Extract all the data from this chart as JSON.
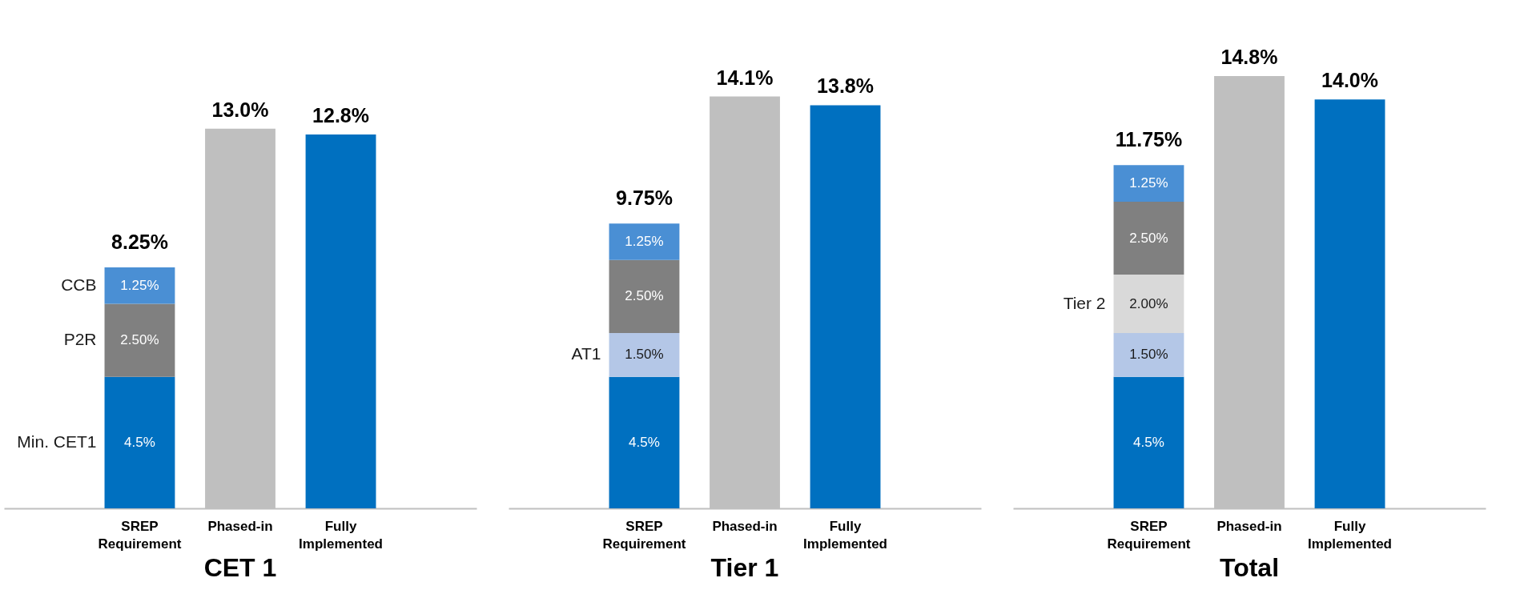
{
  "chart_data": [
    {
      "type": "bar",
      "title": "CET 1",
      "categories": [
        "SREP Requirement",
        "Phased-in",
        "Fully Implemented"
      ],
      "stacked": true,
      "tick_labels": "x",
      "totals": [
        "8.25%",
        null,
        null
      ],
      "series": [
        {
          "name": "Min. CET1",
          "color": "#0070c0",
          "values": [
            4.5,
            null,
            null
          ],
          "value_labels": [
            "4.5%",
            null,
            null
          ]
        },
        {
          "name": "P2R",
          "color": "#808080",
          "values": [
            2.5,
            null,
            null
          ],
          "value_labels": [
            "2.50%",
            null,
            null
          ]
        },
        {
          "name": "CCB",
          "color": "#4a8fd4",
          "values": [
            1.25,
            null,
            null
          ],
          "value_labels": [
            "1.25%",
            null,
            null
          ]
        },
        {
          "color": "#bfbfbf",
          "values": [
            null,
            13.0,
            null
          ],
          "value_labels": [
            null,
            "13.0%",
            null
          ]
        },
        {
          "color": "#0070c0",
          "values": [
            null,
            null,
            12.8
          ],
          "value_labels": [
            null,
            null,
            "12.8%"
          ]
        }
      ]
    },
    {
      "type": "bar",
      "title": "Tier 1",
      "categories": [
        "SREP Requirement",
        "Phased-in",
        "Fully Implemented"
      ],
      "stacked": true,
      "tick_labels": "x",
      "totals": [
        "9.75%",
        null,
        null
      ],
      "series": [
        {
          "color": "#0070c0",
          "values": [
            4.5,
            null,
            null
          ],
          "value_labels": [
            "4.5%",
            null,
            null
          ]
        },
        {
          "name": "AT1",
          "color": "#b4c7e7",
          "values": [
            1.5,
            null,
            null
          ],
          "value_labels": [
            "1.50%",
            null,
            null
          ]
        },
        {
          "color": "#808080",
          "values": [
            2.5,
            null,
            null
          ],
          "value_labels": [
            "2.50%",
            null,
            null
          ]
        },
        {
          "color": "#4a8fd4",
          "values": [
            1.25,
            null,
            null
          ],
          "value_labels": [
            "1.25%",
            null,
            null
          ]
        },
        {
          "color": "#bfbfbf",
          "values": [
            null,
            14.1,
            null
          ],
          "value_labels": [
            null,
            "14.1%",
            null
          ]
        },
        {
          "color": "#0070c0",
          "values": [
            null,
            null,
            13.8
          ],
          "value_labels": [
            null,
            null,
            "13.8%"
          ]
        }
      ]
    },
    {
      "type": "bar",
      "title": "Total",
      "categories": [
        "SREP Requirement",
        "Phased-in",
        "Fully Implemented"
      ],
      "stacked": true,
      "tick_labels": "x",
      "totals": [
        "11.75%",
        null,
        null
      ],
      "series": [
        {
          "color": "#0070c0",
          "values": [
            4.5,
            null,
            null
          ],
          "value_labels": [
            "4.5%",
            null,
            null
          ]
        },
        {
          "color": "#b4c7e7",
          "values": [
            1.5,
            null,
            null
          ],
          "value_labels": [
            "1.50%",
            null,
            null
          ]
        },
        {
          "name": "Tier 2",
          "color": "#d9d9d9",
          "values": [
            2.0,
            null,
            null
          ],
          "value_labels": [
            "2.00%",
            null,
            null
          ]
        },
        {
          "color": "#808080",
          "values": [
            2.5,
            null,
            null
          ],
          "value_labels": [
            "2.50%",
            null,
            null
          ]
        },
        {
          "color": "#4a8fd4",
          "values": [
            1.25,
            null,
            null
          ],
          "value_labels": [
            "1.25%",
            null,
            null
          ]
        },
        {
          "color": "#bfbfbf",
          "values": [
            null,
            14.8,
            null
          ],
          "value_labels": [
            null,
            "14.8%",
            null
          ]
        },
        {
          "color": "#0070c0",
          "values": [
            null,
            null,
            14.0
          ],
          "value_labels": [
            null,
            null,
            "14.0%"
          ]
        }
      ]
    }
  ]
}
